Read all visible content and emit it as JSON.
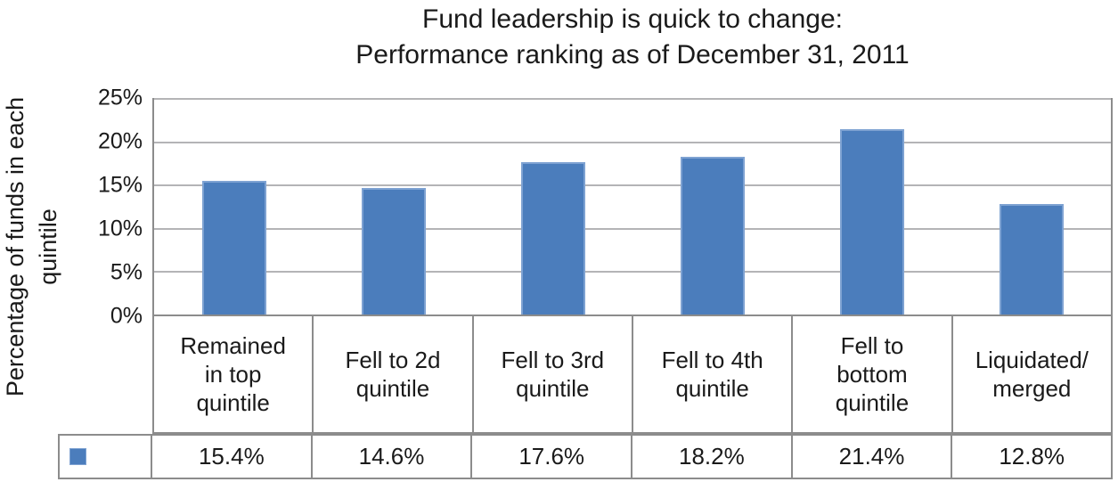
{
  "chart_data": {
    "type": "bar",
    "title": "Fund leadership is quick to change: Performance ranking as of December 31, 2011",
    "title_lines": [
      "Fund leadership is quick to change:",
      "Performance ranking as of December 31, 2011"
    ],
    "ylabel": "Percentage of funds in each quintile",
    "ylabel_lines": [
      "Percentage of funds in each",
      "quintile"
    ],
    "categories": [
      "Remained in top quintile",
      "Fell to 2d quintile",
      "Fell to 3rd quintile",
      "Fell to 4th quintile",
      "Fell to bottom quintile",
      "Liquidated/merged"
    ],
    "category_lines": [
      [
        "Remained",
        "in top",
        "quintile"
      ],
      [
        "Fell to 2d",
        "quintile"
      ],
      [
        "Fell to 3rd",
        "quintile"
      ],
      [
        "Fell to 4th",
        "quintile"
      ],
      [
        "Fell to",
        "bottom",
        "quintile"
      ],
      [
        "Liquidated/",
        "merged"
      ]
    ],
    "values": [
      15.4,
      14.6,
      17.6,
      18.2,
      21.4,
      12.8
    ],
    "value_labels": [
      "15.4%",
      "14.6%",
      "17.6%",
      "18.2%",
      "21.4%",
      "12.8%"
    ],
    "yticks": [
      "25%",
      "20%",
      "15%",
      "10%",
      "5%",
      "0%"
    ],
    "ylim": [
      0,
      25
    ],
    "grid": true,
    "legend": {
      "marker": "square",
      "position": "data-table-left"
    },
    "colors": {
      "bar_fill": "#4B7DBC",
      "bar_border": "#7EA2D2",
      "gridline": "#B4B4B6",
      "table_border": "#8C8C8C",
      "text": "#1A1A1A"
    }
  }
}
